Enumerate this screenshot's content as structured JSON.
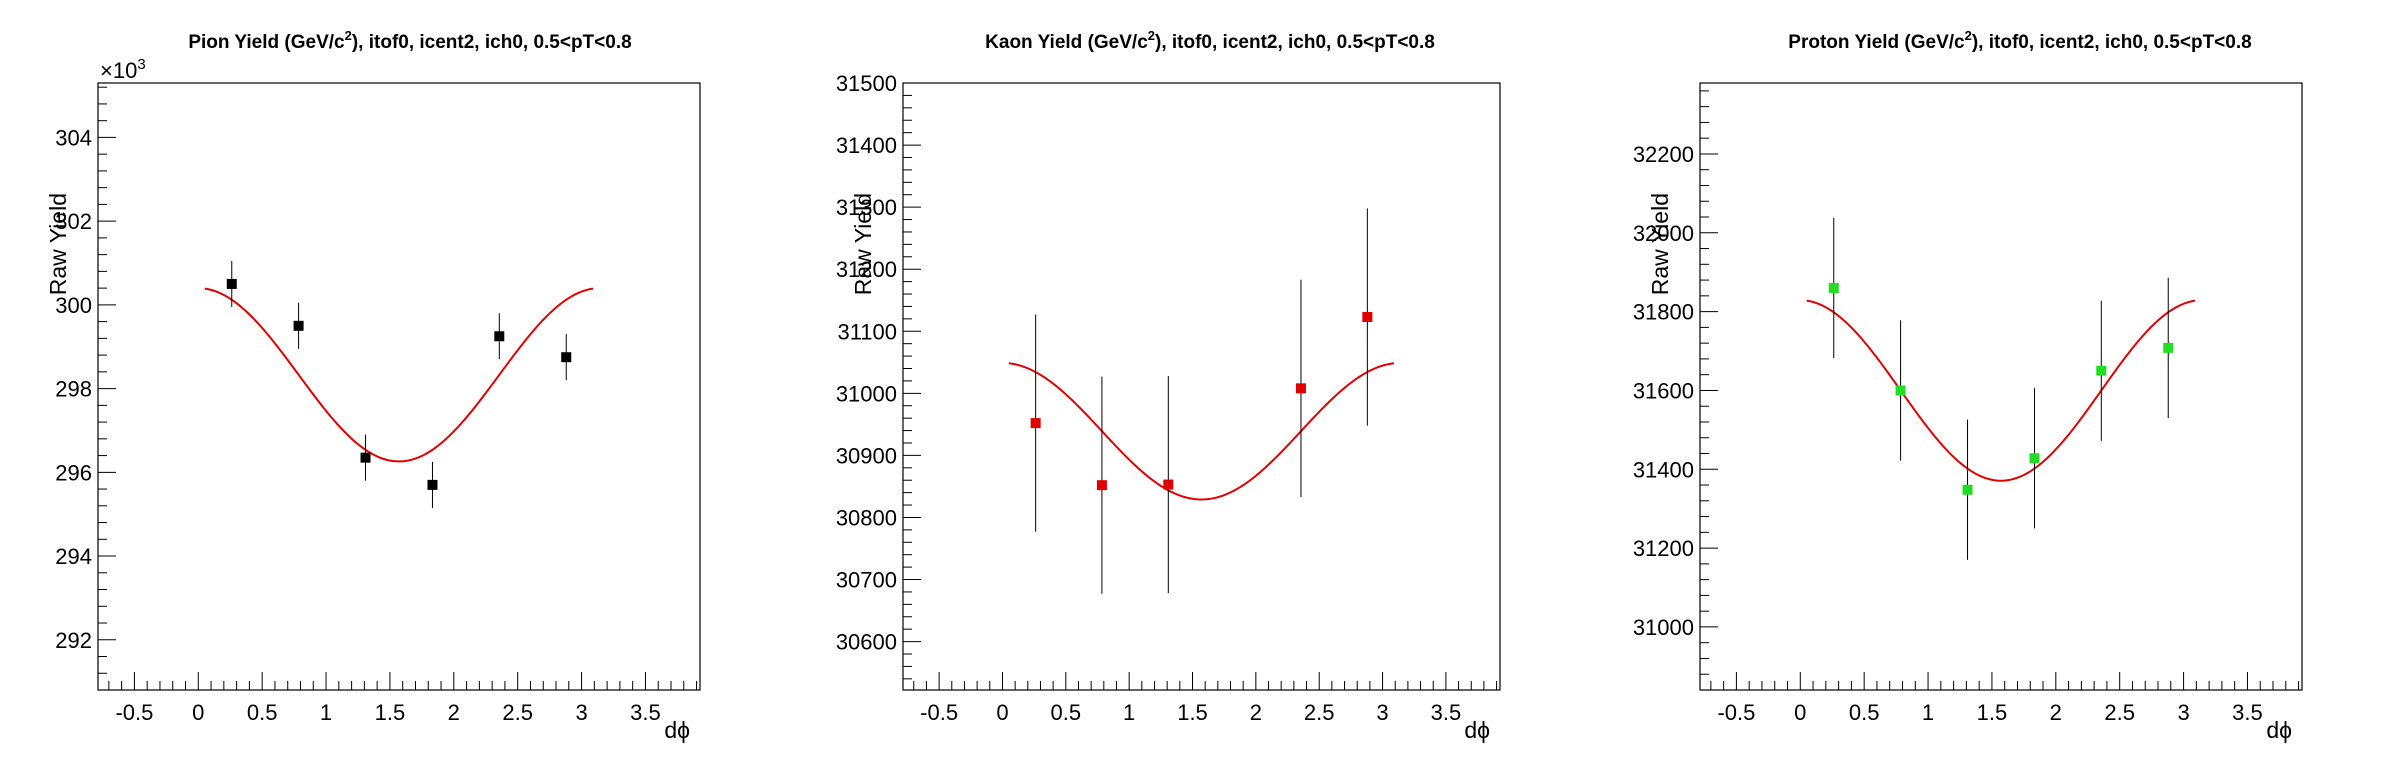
{
  "chart_data": [
    {
      "type": "scatter",
      "title_main": "Pion Yield (GeV/c",
      "title_sup": "2",
      "title_rest": "), itof0, icent2, ich0, 0.5<pT<0.8",
      "xlabel": "dϕ",
      "ylabel": "Raw Yield",
      "exponent_label": "×10",
      "exponent_sup": "3",
      "xlim": [
        -0.785,
        3.927
      ],
      "ylim": [
        290.8,
        305.3
      ],
      "x_ticks": [
        -0.5,
        0,
        0.5,
        1,
        1.5,
        2,
        2.5,
        3,
        3.5
      ],
      "x_tick_labels": [
        "-0.5",
        "0",
        "0.5",
        "1",
        "1.5",
        "2",
        "2.5",
        "3",
        "3.5"
      ],
      "y_ticks": [
        292,
        294,
        296,
        298,
        300,
        302,
        304
      ],
      "y_tick_labels": [
        "292",
        "294",
        "296",
        "298",
        "300",
        "302",
        "304"
      ],
      "marker_color": "#000000",
      "fit_color": "#e00000",
      "points": [
        {
          "x": 0.262,
          "y": 300.5,
          "err": 0.55
        },
        {
          "x": 0.785,
          "y": 299.5,
          "err": 0.55
        },
        {
          "x": 1.309,
          "y": 296.35,
          "err": 0.55
        },
        {
          "x": 1.833,
          "y": 295.7,
          "err": 0.55
        },
        {
          "x": 2.356,
          "y": 299.25,
          "err": 0.55
        },
        {
          "x": 2.88,
          "y": 298.75,
          "err": 0.55
        }
      ],
      "fit": {
        "function": "A + B*cos(2*x)",
        "A": 298.33,
        "B": 2.07,
        "x_range": [
          0.05,
          3.09
        ]
      }
    },
    {
      "type": "scatter",
      "title_main": "Kaon Yield (GeV/c",
      "title_sup": "2",
      "title_rest": "), itof0, icent2, ich0, 0.5<pT<0.8",
      "xlabel": "dϕ",
      "ylabel": "Raw Yield",
      "xlim": [
        -0.785,
        3.927
      ],
      "ylim": [
        30522,
        31500
      ],
      "x_ticks": [
        -0.5,
        0,
        0.5,
        1,
        1.5,
        2,
        2.5,
        3,
        3.5
      ],
      "x_tick_labels": [
        "-0.5",
        "0",
        "0.5",
        "1",
        "1.5",
        "2",
        "2.5",
        "3",
        "3.5"
      ],
      "y_ticks": [
        30600,
        30700,
        30800,
        30900,
        31000,
        31100,
        31200,
        31300,
        31400,
        31500
      ],
      "y_tick_labels": [
        "30600",
        "30700",
        "30800",
        "30900",
        "31000",
        "31100",
        "31200",
        "31300",
        "31400",
        "31500"
      ],
      "marker_color": "#e00000",
      "fit_color": "#e00000",
      "points": [
        {
          "x": 0.262,
          "y": 30952,
          "err": 175
        },
        {
          "x": 0.785,
          "y": 30852,
          "err": 175
        },
        {
          "x": 1.309,
          "y": 30853,
          "err": 175
        },
        {
          "x": 2.356,
          "y": 31008,
          "err": 175
        },
        {
          "x": 2.88,
          "y": 31123,
          "err": 175
        }
      ],
      "fit": {
        "function": "A + B*cos(2*x)",
        "A": 30939,
        "B": 110,
        "x_range": [
          0.05,
          3.09
        ]
      }
    },
    {
      "type": "scatter",
      "title_main": "Proton Yield (GeV/c",
      "title_sup": "2",
      "title_rest": "), itof0, icent2, ich0, 0.5<pT<0.8",
      "xlabel": "dϕ",
      "ylabel": "Raw Yield",
      "xlim": [
        -0.785,
        3.927
      ],
      "ylim": [
        30840,
        32380
      ],
      "x_ticks": [
        -0.5,
        0,
        0.5,
        1,
        1.5,
        2,
        2.5,
        3,
        3.5
      ],
      "x_tick_labels": [
        "-0.5",
        "0",
        "0.5",
        "1",
        "1.5",
        "2",
        "2.5",
        "3",
        "3.5"
      ],
      "y_ticks": [
        31000,
        31200,
        31400,
        31600,
        31800,
        32000,
        32200
      ],
      "y_tick_labels": [
        "31000",
        "31200",
        "31400",
        "31600",
        "31800",
        "32000",
        "32200"
      ],
      "marker_color": "#22dd22",
      "fit_color": "#e00000",
      "points": [
        {
          "x": 0.262,
          "y": 31860,
          "err": 178
        },
        {
          "x": 0.785,
          "y": 31600,
          "err": 178
        },
        {
          "x": 1.309,
          "y": 31348,
          "err": 178
        },
        {
          "x": 1.833,
          "y": 31428,
          "err": 178
        },
        {
          "x": 2.356,
          "y": 31650,
          "err": 178
        },
        {
          "x": 2.88,
          "y": 31708,
          "err": 178
        }
      ],
      "fit": {
        "function": "A + B*cos(2*x)",
        "A": 31600,
        "B": 229,
        "x_range": [
          0.05,
          3.09
        ]
      }
    }
  ]
}
